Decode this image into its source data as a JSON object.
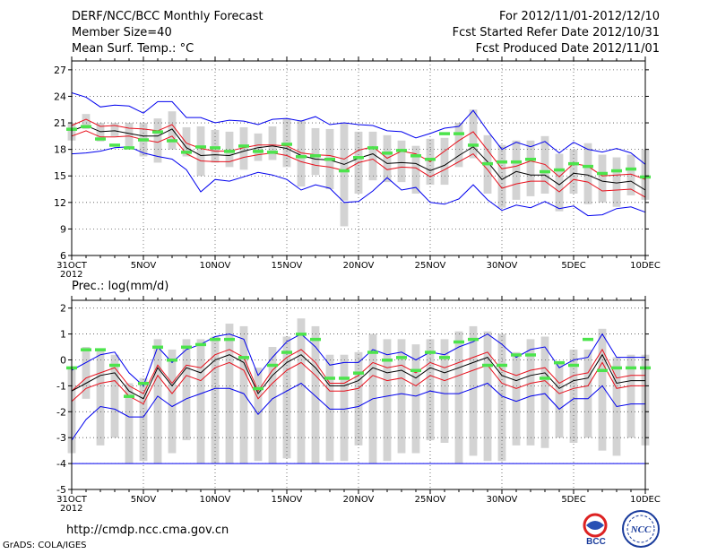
{
  "header": {
    "title": "DERF/NCC/BCC Monthly Forecast",
    "member": "Member Size=40",
    "variable": "Mean Surf. Temp.: °C",
    "period": "For 2012/11/01-2012/12/10",
    "started": "Fcst Started Refer Date 2012/10/31",
    "produced": "Fcst Produced Date 2012/11/01"
  },
  "footer": {
    "url": "http://cmdp.ncc.cma.gov.cn",
    "grads": "GrADS: COLA/IGES",
    "logo1_text": "BCC",
    "logo2_text": "NCC"
  },
  "colors": {
    "box": "#d3d3d3",
    "median": "#000000",
    "quartile": "#e8101c",
    "extreme": "#0000ee",
    "obs": "#4ce44c",
    "axis": "#000000"
  },
  "chart_data": [
    {
      "type": "line",
      "title": "Mean Surf. Temp.: °C",
      "ylim": [
        6,
        28
      ],
      "yticks": [
        6,
        9,
        12,
        15,
        18,
        21,
        24,
        27
      ],
      "xlim": [
        0,
        40
      ],
      "x_tick_positions": [
        0,
        5,
        10,
        15,
        20,
        25,
        30,
        35,
        40
      ],
      "x_tick_labels": [
        "31OCT",
        "5NOV",
        "10NOV",
        "15NOV",
        "20NOV",
        "25NOV",
        "30NOV",
        "5DEC",
        "10DEC"
      ],
      "x_sub_label": "2012",
      "series": [
        {
          "name": "max",
          "color_key": "extreme",
          "values": [
            24.4,
            23.9,
            22.8,
            23.0,
            22.9,
            22.1,
            23.4,
            23.4,
            21.6,
            21.6,
            21.0,
            21.3,
            21.2,
            20.8,
            21.4,
            21.5,
            21.2,
            21.7,
            20.8,
            21.0,
            20.8,
            20.7,
            20.1,
            20.0,
            19.3,
            19.8,
            20.4,
            20.6,
            22.4,
            20.1,
            18.0,
            18.8,
            18.3,
            18.9,
            17.6,
            18.8,
            18.0,
            17.7,
            18.1,
            17.6,
            16.3
          ]
        },
        {
          "name": "upper",
          "color_key": "quartile",
          "values": [
            20.7,
            21.4,
            20.6,
            20.7,
            20.4,
            20.3,
            20.1,
            20.8,
            18.7,
            18.1,
            17.8,
            17.8,
            18.2,
            18.5,
            18.5,
            18.4,
            17.6,
            17.4,
            17.3,
            16.9,
            17.9,
            18.3,
            17.0,
            17.8,
            17.5,
            16.6,
            17.8,
            19.0,
            20.0,
            17.9,
            15.8,
            16.1,
            16.7,
            16.3,
            14.9,
            16.4,
            16.1,
            15.0,
            15.1,
            15.2,
            14.6
          ]
        },
        {
          "name": "median",
          "color_key": "median",
          "values": [
            20.1,
            20.7,
            20.0,
            20.1,
            19.8,
            19.5,
            19.5,
            20.3,
            18.2,
            17.3,
            17.4,
            17.3,
            17.8,
            18.2,
            18.4,
            18.1,
            17.3,
            16.9,
            16.8,
            16.3,
            17.0,
            17.5,
            16.4,
            16.5,
            16.4,
            15.6,
            16.2,
            17.3,
            18.3,
            16.6,
            14.6,
            15.5,
            15.1,
            15.1,
            14.0,
            15.3,
            15.1,
            14.4,
            14.2,
            14.4,
            13.4
          ]
        },
        {
          "name": "lower",
          "color_key": "quartile",
          "values": [
            19.5,
            20.1,
            19.4,
            19.4,
            19.5,
            19.1,
            18.8,
            19.5,
            17.5,
            16.7,
            16.6,
            16.6,
            17.1,
            17.4,
            17.6,
            17.3,
            16.6,
            16.2,
            16.0,
            15.6,
            16.5,
            16.9,
            15.7,
            16.0,
            15.9,
            14.9,
            15.7,
            16.6,
            17.5,
            15.7,
            13.6,
            14.1,
            14.4,
            14.4,
            13.2,
            14.6,
            14.3,
            13.3,
            13.4,
            13.5,
            12.6
          ]
        },
        {
          "name": "min",
          "color_key": "extreme",
          "values": [
            17.5,
            17.6,
            17.8,
            18.2,
            18.3,
            17.6,
            17.2,
            16.9,
            15.7,
            13.2,
            14.6,
            14.4,
            14.9,
            15.4,
            15.1,
            14.6,
            13.4,
            14.0,
            13.6,
            12.0,
            12.1,
            13.3,
            14.8,
            13.4,
            13.7,
            12.0,
            11.8,
            12.4,
            14.0,
            12.3,
            11.1,
            11.7,
            11.4,
            12.1,
            11.3,
            11.6,
            10.5,
            10.6,
            11.3,
            11.5,
            10.9
          ]
        }
      ],
      "boxes": [
        [
          19.0,
          21.0
        ],
        [
          20.3,
          22.0
        ],
        [
          18.9,
          21.0
        ],
        [
          19.5,
          21.0
        ],
        [
          18.0,
          21.0
        ],
        [
          17.2,
          21.0
        ],
        [
          16.5,
          21.5
        ],
        [
          18.0,
          22.3
        ],
        [
          17.2,
          20.5
        ],
        [
          15.0,
          20.6
        ],
        [
          16.5,
          20.2
        ],
        [
          16.0,
          20.0
        ],
        [
          15.7,
          20.5
        ],
        [
          16.7,
          19.8
        ],
        [
          16.8,
          20.6
        ],
        [
          16.0,
          21.5
        ],
        [
          13.8,
          21.3
        ],
        [
          15.1,
          20.4
        ],
        [
          13.5,
          20.3
        ],
        [
          12.2,
          21.0
        ],
        [
          13.0,
          20.0
        ],
        [
          14.5,
          20.0
        ],
        [
          14.3,
          19.6
        ],
        [
          14.3,
          19.0
        ],
        [
          13.0,
          18.4
        ],
        [
          14.0,
          19.2
        ],
        [
          14.0,
          19.3
        ],
        [
          16.0,
          21.0
        ],
        [
          17.0,
          22.5
        ],
        [
          13.0,
          19.6
        ],
        [
          11.4,
          18.5
        ],
        [
          12.3,
          19.0
        ],
        [
          12.7,
          19.0
        ],
        [
          13.0,
          19.5
        ],
        [
          11.0,
          17.5
        ],
        [
          13.0,
          18.0
        ],
        [
          11.8,
          18.7
        ],
        [
          12.0,
          17.4
        ],
        [
          11.5,
          17.1
        ],
        [
          12.8,
          17.4
        ],
        [
          12.3,
          18.0
        ]
      ],
      "box_extensions": [
        [
          19,
          9.3,
          12.0
        ]
      ],
      "observed": [
        20.3,
        20.6,
        19.2,
        18.5,
        18.2,
        19.1,
        20.0,
        19.0,
        17.7,
        18.3,
        18.2,
        17.8,
        18.4,
        17.8,
        17.7,
        18.6,
        17.2,
        17.3,
        16.9,
        15.6,
        17.1,
        18.2,
        17.6,
        17.9,
        17.3,
        16.9,
        19.8,
        19.8,
        18.5,
        16.4,
        16.6,
        16.6,
        16.9,
        15.5,
        15.7,
        16.4,
        16.1,
        15.3,
        15.6,
        15.8,
        14.9
      ]
    },
    {
      "type": "line",
      "title": "Prec.: log(mm/d)",
      "ylim": [
        -5,
        2.3
      ],
      "yticks": [
        -5,
        -4,
        -3,
        -2,
        -1,
        0,
        1,
        2
      ],
      "xlim": [
        0,
        40
      ],
      "x_tick_positions": [
        0,
        5,
        10,
        15,
        20,
        25,
        30,
        35,
        40
      ],
      "x_tick_labels": [
        "31OCT",
        "5NOV",
        "10NOV",
        "15NOV",
        "20NOV",
        "25NOV",
        "30NOV",
        "5DEC",
        "10DEC"
      ],
      "x_sub_label": "2012",
      "series": [
        {
          "name": "max",
          "color_key": "extreme",
          "values": [
            -0.4,
            -0.1,
            0.2,
            0.3,
            -0.5,
            -1.0,
            0.5,
            -0.1,
            0.4,
            0.6,
            0.9,
            1.0,
            0.8,
            -0.6,
            0.1,
            0.7,
            1.0,
            0.5,
            -0.2,
            -0.1,
            -0.1,
            0.4,
            0.2,
            0.3,
            0.0,
            0.3,
            0.2,
            0.5,
            0.7,
            1.0,
            0.6,
            0.1,
            0.4,
            0.5,
            -0.3,
            0.0,
            0.1,
            1.0,
            0.1,
            0.1,
            0.1
          ]
        },
        {
          "name": "upper",
          "color_key": "quartile",
          "values": [
            -1.2,
            -0.7,
            -0.5,
            -0.3,
            -1.0,
            -1.3,
            -0.2,
            -0.9,
            -0.2,
            -0.3,
            0.2,
            0.4,
            0.1,
            -1.2,
            -0.4,
            0.1,
            0.4,
            -0.1,
            -0.9,
            -0.9,
            -0.6,
            -0.1,
            -0.3,
            -0.2,
            -0.5,
            -0.1,
            -0.3,
            -0.1,
            0.1,
            0.3,
            -0.4,
            -0.6,
            -0.4,
            -0.3,
            -0.9,
            -0.6,
            -0.5,
            0.4,
            -0.7,
            -0.6,
            -0.6
          ]
        },
        {
          "name": "median",
          "color_key": "median",
          "values": [
            -1.2,
            -0.9,
            -0.6,
            -0.5,
            -1.2,
            -1.5,
            -0.3,
            -1.0,
            -0.3,
            -0.5,
            0.0,
            0.2,
            -0.1,
            -1.3,
            -0.6,
            -0.1,
            0.2,
            -0.3,
            -1.0,
            -1.0,
            -0.8,
            -0.3,
            -0.5,
            -0.4,
            -0.7,
            -0.3,
            -0.5,
            -0.3,
            -0.1,
            0.1,
            -0.6,
            -0.8,
            -0.6,
            -0.5,
            -1.1,
            -0.8,
            -0.7,
            0.2,
            -0.9,
            -0.8,
            -0.8
          ]
        },
        {
          "name": "lower",
          "color_key": "quartile",
          "values": [
            -1.6,
            -1.1,
            -0.9,
            -0.8,
            -1.4,
            -1.7,
            -0.6,
            -1.3,
            -0.6,
            -0.8,
            -0.3,
            -0.1,
            -0.4,
            -1.5,
            -0.9,
            -0.4,
            -0.1,
            -0.6,
            -1.2,
            -1.2,
            -1.1,
            -0.6,
            -0.8,
            -0.7,
            -1.0,
            -0.6,
            -0.8,
            -0.6,
            -0.4,
            -0.2,
            -0.9,
            -1.1,
            -0.9,
            -0.8,
            -1.3,
            -1.1,
            -1.0,
            -0.1,
            -1.1,
            -1.0,
            -1.0
          ]
        },
        {
          "name": "min",
          "color_key": "extreme",
          "values": [
            -3.1,
            -2.3,
            -1.8,
            -1.9,
            -2.2,
            -2.2,
            -1.4,
            -1.8,
            -1.5,
            -1.3,
            -1.1,
            -1.1,
            -1.3,
            -2.1,
            -1.5,
            -1.2,
            -0.9,
            -1.4,
            -1.9,
            -1.9,
            -1.8,
            -1.5,
            -1.4,
            -1.3,
            -1.4,
            -1.2,
            -1.3,
            -1.3,
            -1.1,
            -0.9,
            -1.4,
            -1.6,
            -1.4,
            -1.3,
            -1.9,
            -1.5,
            -1.5,
            -1.0,
            -1.8,
            -1.7,
            -1.7
          ]
        },
        {
          "name": "floor",
          "color_key": "extreme",
          "values": [
            -4,
            -4,
            -4,
            -4,
            -4,
            -4,
            -4,
            -4,
            -4,
            -4,
            -4,
            -4,
            -4,
            -4,
            -4,
            -4,
            -4,
            -4,
            -4,
            -4,
            -4,
            -4,
            -4,
            -4,
            -4,
            -4,
            -4,
            -4,
            -4,
            -4,
            -4,
            -4,
            -4,
            -4,
            -4,
            -4,
            -4,
            -4,
            -4,
            -4,
            -4
          ]
        }
      ],
      "boxes": [
        [
          -3.6,
          -0.3
        ],
        [
          -1.5,
          0.5
        ],
        [
          -3.3,
          0.4
        ],
        [
          -3.0,
          0.2
        ],
        [
          -4.0,
          -0.9
        ],
        [
          -3.9,
          -0.7
        ],
        [
          -4.0,
          0.8
        ],
        [
          -3.6,
          0.4
        ],
        [
          -3.1,
          0.8
        ],
        [
          -4.0,
          0.8
        ],
        [
          -4.0,
          0.9
        ],
        [
          -4.0,
          1.4
        ],
        [
          -4.0,
          1.3
        ],
        [
          -3.9,
          -0.3
        ],
        [
          -4.0,
          0.5
        ],
        [
          -3.8,
          0.9
        ],
        [
          -4.0,
          1.6
        ],
        [
          -4.0,
          1.3
        ],
        [
          -3.9,
          0.2
        ],
        [
          -3.9,
          0.2
        ],
        [
          -3.3,
          0.3
        ],
        [
          -4.0,
          1.0
        ],
        [
          -3.9,
          0.8
        ],
        [
          -3.6,
          0.8
        ],
        [
          -3.6,
          0.6
        ],
        [
          -3.1,
          0.8
        ],
        [
          -3.2,
          0.8
        ],
        [
          -4.0,
          1.1
        ],
        [
          -3.7,
          1.3
        ],
        [
          -3.9,
          1.1
        ],
        [
          -3.9,
          1.0
        ],
        [
          -3.3,
          0.3
        ],
        [
          -3.3,
          0.8
        ],
        [
          -3.4,
          0.9
        ],
        [
          -3.0,
          -0.1
        ],
        [
          -3.2,
          0.4
        ],
        [
          -3.0,
          0.4
        ],
        [
          -3.5,
          1.2
        ],
        [
          -3.7,
          0.1
        ],
        [
          -3.0,
          0.2
        ],
        [
          -3.3,
          0.2
        ]
      ],
      "box_extensions": [],
      "observed": [
        -0.3,
        0.4,
        0.4,
        -0.2,
        -1.4,
        -0.9,
        0.5,
        0.0,
        0.5,
        0.6,
        0.8,
        0.8,
        0.1,
        -1.1,
        -0.2,
        0.3,
        1.0,
        0.8,
        -0.7,
        -0.7,
        -0.5,
        0.3,
        0.0,
        0.1,
        -0.4,
        0.3,
        0.1,
        0.7,
        0.8,
        -0.2,
        -0.2,
        0.2,
        0.2,
        -0.7,
        -0.1,
        -0.2,
        0.8,
        -0.4,
        -0.3,
        -0.3,
        -0.3
      ]
    }
  ]
}
